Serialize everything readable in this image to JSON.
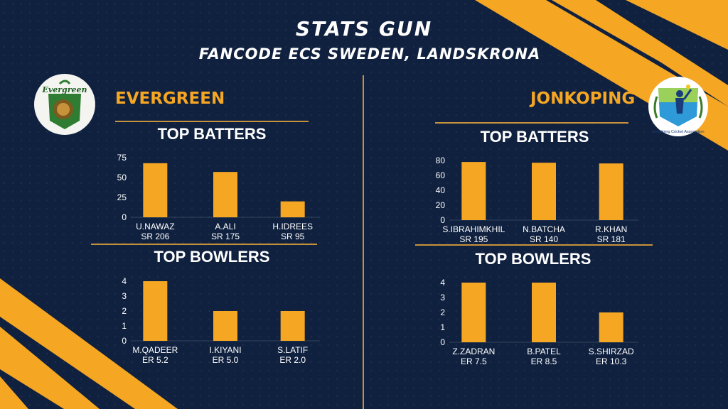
{
  "header": {
    "title": "STATS GUN",
    "subtitle": "FANCODE ECS SWEDEN, LANDSKRONA"
  },
  "colors": {
    "background": "#10213f",
    "accent": "#f5a623",
    "divider": "#c8923a"
  },
  "teams": {
    "left": {
      "name": "EVERGREEN",
      "logo_text": "Evergreen",
      "logo_icon": "evergreen-logo-icon",
      "batters_title": "TOP BATTERS",
      "bowlers_title": "TOP BOWLERS"
    },
    "right": {
      "name": "JONKOPING",
      "logo_text": "Jonköping Cricket Association",
      "logo_icon": "jonkoping-cricket-logo-icon",
      "batters_title": "TOP BATTERS",
      "bowlers_title": "TOP BOWLERS"
    }
  },
  "chart_data": [
    {
      "type": "bar",
      "id": "evergreen-batters",
      "title": "TOP BATTERS",
      "categories": [
        "U.NAWAZ",
        "A.ALI",
        "H.IDREES"
      ],
      "sublabels": [
        "SR 206",
        "SR 175",
        "SR 95"
      ],
      "values": [
        68,
        57,
        20
      ],
      "ylim": [
        0,
        75
      ],
      "yticks": [
        0,
        25,
        50,
        75
      ],
      "grid": false,
      "color": "#f5a623"
    },
    {
      "type": "bar",
      "id": "evergreen-bowlers",
      "title": "TOP BOWLERS",
      "categories": [
        "M.QADEER",
        "I.KIYANI",
        "S.LATIF"
      ],
      "sublabels": [
        "ER 5.2",
        "ER 5.0",
        "ER 2.0"
      ],
      "values": [
        4,
        2,
        2
      ],
      "ylim": [
        0,
        4
      ],
      "yticks": [
        0,
        1,
        2,
        3,
        4
      ],
      "grid": false,
      "color": "#f5a623"
    },
    {
      "type": "bar",
      "id": "jonkoping-batters",
      "title": "TOP BATTERS",
      "categories": [
        "S.IBRAHIMKHIL",
        "N.BATCHA",
        "R.KHAN"
      ],
      "sublabels": [
        "SR 195",
        "SR 140",
        "SR 181"
      ],
      "values": [
        78,
        77,
        76
      ],
      "ylim": [
        0,
        80
      ],
      "yticks": [
        0,
        20,
        40,
        60,
        80
      ],
      "grid": false,
      "color": "#f5a623"
    },
    {
      "type": "bar",
      "id": "jonkoping-bowlers",
      "title": "TOP BOWLERS",
      "categories": [
        "Z.ZADRAN",
        "B.PATEL",
        "S.SHIRZAD"
      ],
      "sublabels": [
        "ER 7.5",
        "ER 8.5",
        "ER 10.3"
      ],
      "values": [
        4,
        4,
        2
      ],
      "ylim": [
        0,
        4
      ],
      "yticks": [
        0,
        1,
        2,
        3,
        4
      ],
      "grid": false,
      "color": "#f5a623"
    }
  ]
}
